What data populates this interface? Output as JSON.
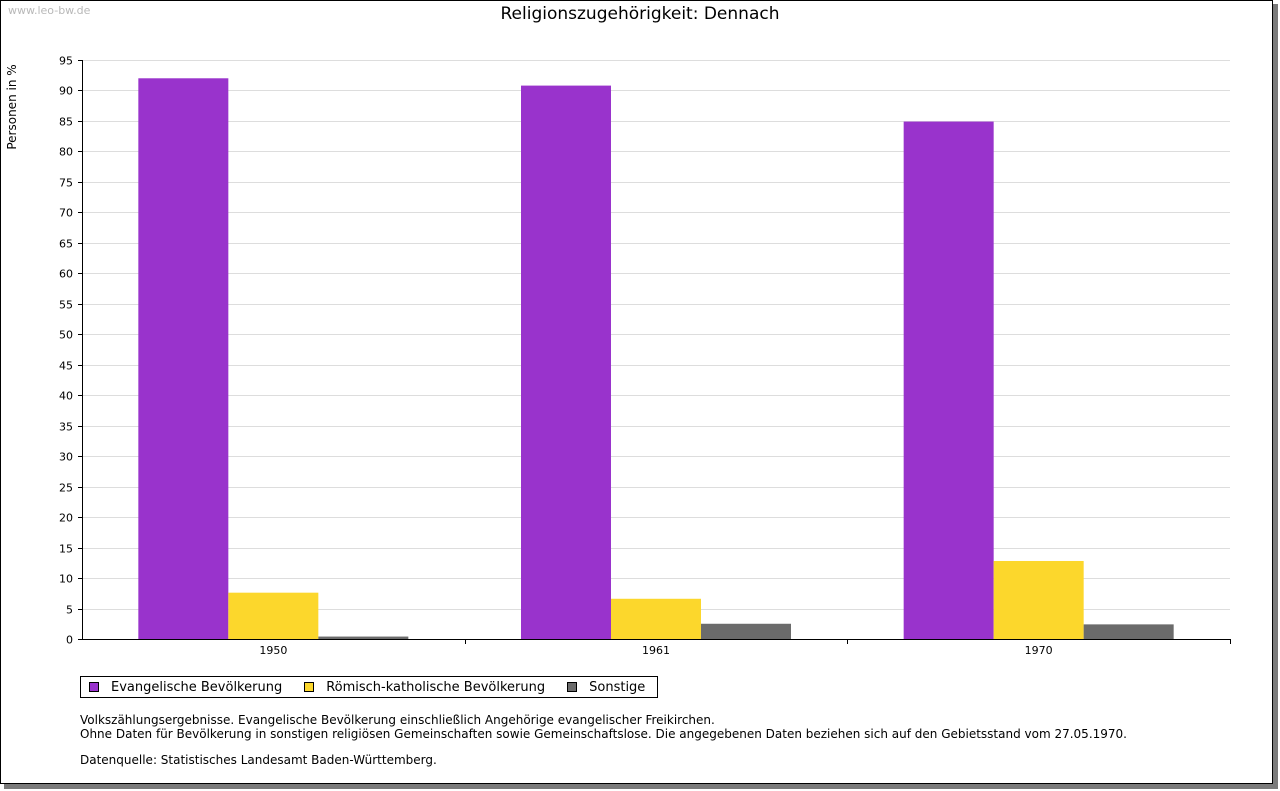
{
  "watermark": "www.leo-bw.de",
  "chart_data": {
    "type": "bar",
    "title": "Religionszugehörigkeit: Dennach",
    "ylabel": "Personen in %",
    "xlabel": "",
    "ylim": [
      0,
      95
    ],
    "ytick_step": 5,
    "grid": true,
    "legend_position": "bottom",
    "categories": [
      "1950",
      "1961",
      "1970"
    ],
    "series": [
      {
        "name": "Evangelische Bevölkerung",
        "color": "#9933cc",
        "values": [
          92.0,
          90.8,
          84.9
        ]
      },
      {
        "name": "Römisch-katholische Bevölkerung",
        "color": "#fcd72c",
        "values": [
          7.6,
          6.6,
          12.8
        ]
      },
      {
        "name": "Sonstige",
        "color": "#6b6b6b",
        "values": [
          0.4,
          2.5,
          2.4
        ]
      }
    ]
  },
  "notes": {
    "line1": "Volkszählungsergebnisse. Evangelische Bevölkerung einschließlich Angehörige evangelischer Freikirchen.",
    "line2": "Ohne Daten für Bevölkerung in sonstigen religiösen Gemeinschaften sowie Gemeinschaftslose. Die angegebenen Daten beziehen sich auf den Gebietsstand vom 27.05.1970.",
    "source": "Datenquelle: Statistisches Landesamt Baden-Württemberg."
  }
}
